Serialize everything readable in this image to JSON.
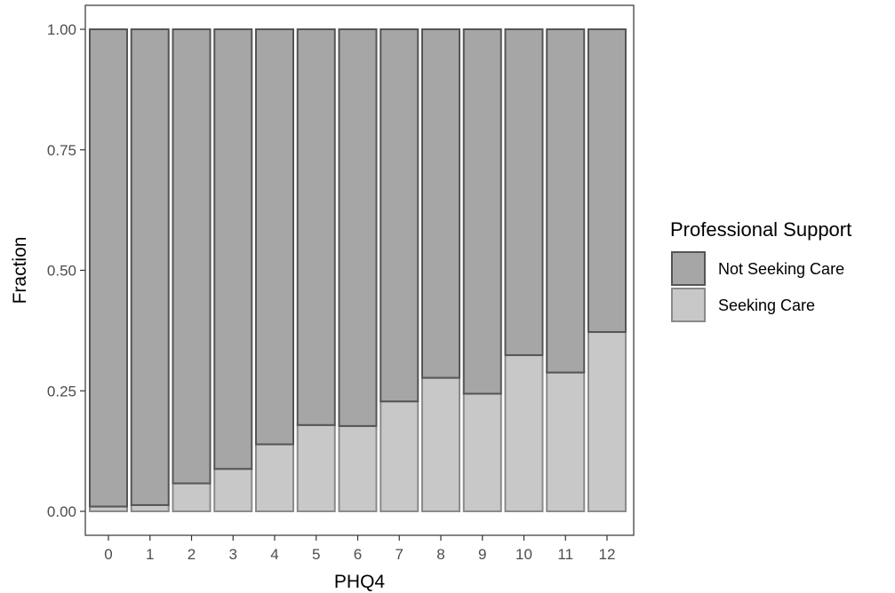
{
  "chart_data": {
    "type": "bar",
    "stacked": true,
    "xlabel": "PHQ4",
    "ylabel": "Fraction",
    "ylim": [
      0,
      1
    ],
    "y_ticks": [
      "0.00",
      "0.25",
      "0.50",
      "0.75",
      "1.00"
    ],
    "y_tick_values": [
      0,
      0.25,
      0.5,
      0.75,
      1.0
    ],
    "categories": [
      "0",
      "1",
      "2",
      "3",
      "4",
      "5",
      "6",
      "7",
      "8",
      "9",
      "10",
      "11",
      "12"
    ],
    "series": [
      {
        "name": "Not Seeking Care",
        "color": "#a6a6a6",
        "stroke": "#555555",
        "values": [
          0.99,
          0.987,
          0.942,
          0.912,
          0.861,
          0.821,
          0.823,
          0.772,
          0.723,
          0.756,
          0.676,
          0.712,
          0.628
        ]
      },
      {
        "name": "Seeking Care",
        "color": "#c8c8c8",
        "stroke": "#8a8a8a",
        "values": [
          0.01,
          0.013,
          0.058,
          0.088,
          0.139,
          0.179,
          0.177,
          0.228,
          0.277,
          0.244,
          0.324,
          0.288,
          0.372
        ]
      }
    ],
    "grid": false,
    "legend": {
      "title": "Professional Support",
      "position": "right"
    }
  }
}
